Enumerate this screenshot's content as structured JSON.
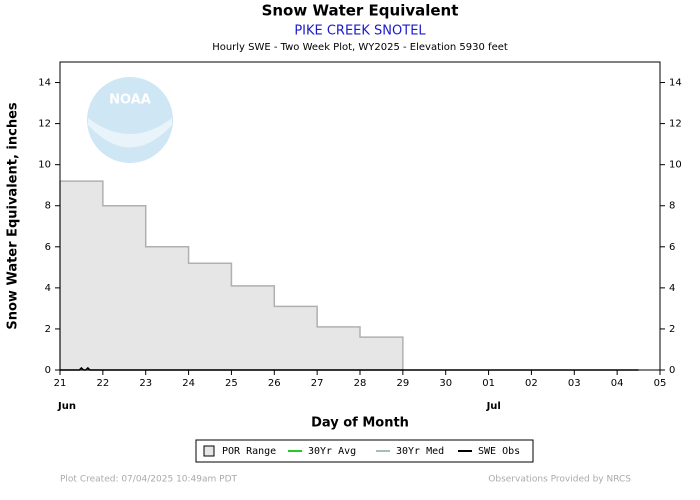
{
  "chart_data": {
    "type": "step-area",
    "title": "Snow Water Equivalent",
    "subtitle": "PIKE CREEK SNOTEL",
    "description": "Hourly SWE - Two Week Plot, WY2025 -  Elevation 5930 feet",
    "ylabel": "Snow Water Equivalent, inches",
    "xlabel": "Day of Month",
    "logo_text": "NOAA",
    "footer_left": "Plot Created: 07/04/2025 10:49am PDT",
    "footer_right": "Observations Provided by NRCS",
    "xlim": [
      0,
      14
    ],
    "xticks": [
      {
        "value": 0,
        "label": "21"
      },
      {
        "value": 1,
        "label": "22"
      },
      {
        "value": 2,
        "label": "23"
      },
      {
        "value": 3,
        "label": "24"
      },
      {
        "value": 4,
        "label": "25"
      },
      {
        "value": 5,
        "label": "26"
      },
      {
        "value": 6,
        "label": "27"
      },
      {
        "value": 7,
        "label": "28"
      },
      {
        "value": 8,
        "label": "29"
      },
      {
        "value": 9,
        "label": "30"
      },
      {
        "value": 10,
        "label": "01"
      },
      {
        "value": 11,
        "label": "02"
      },
      {
        "value": 12,
        "label": "03"
      },
      {
        "value": 13,
        "label": "04"
      },
      {
        "value": 14,
        "label": "05"
      }
    ],
    "month_labels": [
      {
        "value": 0,
        "label": "Jun"
      },
      {
        "value": 10,
        "label": "Jul"
      }
    ],
    "ylim": [
      0,
      15
    ],
    "yticks": [
      0,
      2,
      4,
      6,
      8,
      10,
      12,
      14
    ],
    "series": [
      {
        "name": "POR Range",
        "color": "#e6e6e6",
        "x": [
          0,
          1,
          1,
          2,
          2,
          3,
          3,
          4,
          4,
          5,
          5,
          6,
          6,
          7,
          7,
          8,
          8
        ],
        "values": [
          9.2,
          9.2,
          8.0,
          8.0,
          6.0,
          6.0,
          5.2,
          5.2,
          4.1,
          4.1,
          3.1,
          3.1,
          2.1,
          2.1,
          1.6,
          1.6,
          0
        ]
      },
      {
        "name": "30Yr Avg",
        "color": "#22cc22",
        "x": [],
        "values": []
      },
      {
        "name": "30Yr Med",
        "color": "#aabbbb",
        "x": [],
        "values": []
      },
      {
        "name": "SWE Obs",
        "color": "#000000",
        "x": [
          0,
          0.45,
          0.5,
          0.55,
          0.6,
          0.65,
          0.7,
          13.5
        ],
        "values": [
          0,
          0,
          0.1,
          0,
          0,
          0.1,
          0,
          0
        ]
      }
    ]
  }
}
